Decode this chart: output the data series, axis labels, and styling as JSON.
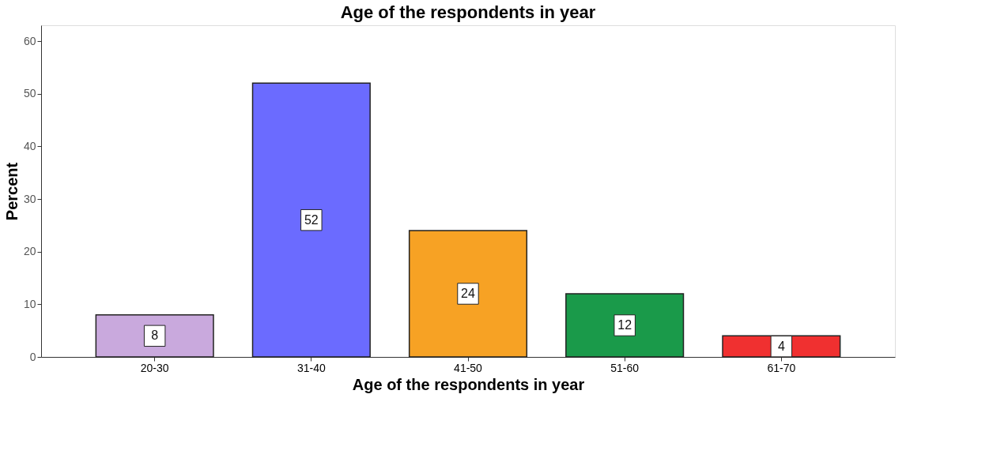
{
  "chart_data": {
    "type": "bar",
    "title": "Age of the respondents in year",
    "xlabel": "Age of the respondents in year",
    "ylabel": "Percent",
    "categories": [
      "20-30",
      "31-40",
      "41-50",
      "51-60",
      "61-70"
    ],
    "values": [
      8,
      52,
      24,
      12,
      4
    ],
    "colors": [
      "#c9a9dd",
      "#6b6bff",
      "#f7a224",
      "#1a9a4a",
      "#f03030"
    ],
    "ylim": [
      0,
      63
    ],
    "yticks": [
      0,
      10,
      20,
      30,
      40,
      50,
      60
    ],
    "data_labels": true
  }
}
